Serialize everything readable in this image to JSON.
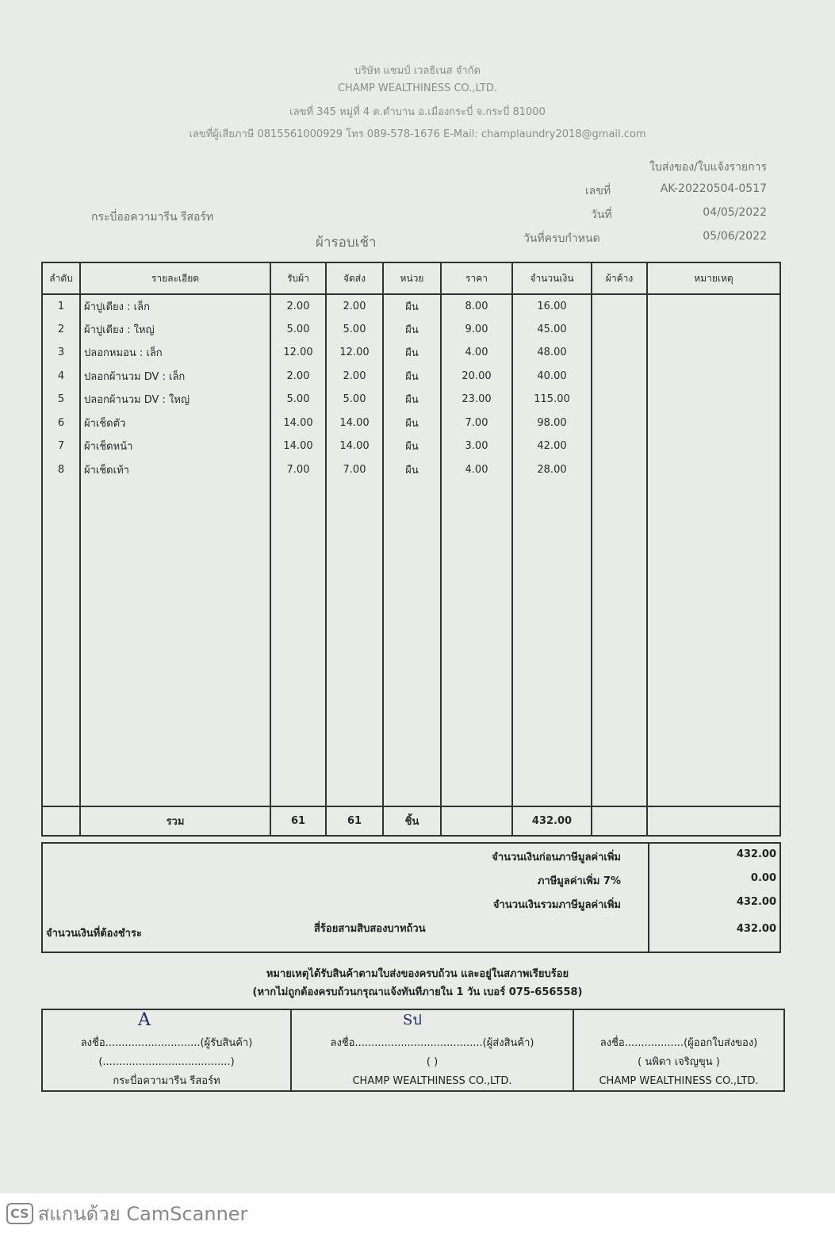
{
  "company": {
    "name_th": "บริษัท แชมป์ เวลธิเนส จำกัด",
    "name_en": "CHAMP WEALTHINESS CO.,LTD.",
    "address": "เลขที่ 345 หมู่ที่ 4 ต.ตำบาน อ.เมืองกระบี่ จ.กระบี่ 81000",
    "contact": "เลขที่ผู้เสียภาษี 0815561000929 โทร 089-578-1676 E-Mail: champlaundry2018@gmail.com"
  },
  "doc": {
    "type": "ใบส่งของ/ใบแจ้งรายการ",
    "no_label": "เลขที่",
    "no": "AK-20220504-0517",
    "date_label": "วันที่",
    "date": "04/05/2022",
    "due_label": "วันที่ครบกำหนด",
    "due": "05/06/2022",
    "customer": "กระบี่ออความารีน รีสอร์ท",
    "round": "ผ้ารอบเช้า"
  },
  "table": {
    "headers": [
      "ลำดับ",
      "รายละเอียด",
      "รับผ้า",
      "จัดส่ง",
      "หน่วย",
      "ราคา",
      "จำนวนเงิน",
      "ผ้าค้าง",
      "หมายเหตุ"
    ],
    "rows": [
      [
        "1",
        "ผ้าปูเตียง : เล็ก",
        "2.00",
        "2.00",
        "ผืน",
        "8.00",
        "16.00"
      ],
      [
        "2",
        "ผ้าปูเตียง : ใหญ่",
        "5.00",
        "5.00",
        "ผืน",
        "9.00",
        "45.00"
      ],
      [
        "3",
        "ปลอกหมอน : เล็ก",
        "12.00",
        "12.00",
        "ผืน",
        "4.00",
        "48.00"
      ],
      [
        "4",
        "ปลอกผ้านวม DV : เล็ก",
        "2.00",
        "2.00",
        "ผืน",
        "20.00",
        "40.00"
      ],
      [
        "5",
        "ปลอกผ้านวม DV : ใหญ่",
        "5.00",
        "5.00",
        "ผืน",
        "23.00",
        "115.00"
      ],
      [
        "6",
        "ผ้าเช็ดตัว",
        "14.00",
        "14.00",
        "ผืน",
        "7.00",
        "98.00"
      ],
      [
        "7",
        "ผ้าเช็ดหน้า",
        "14.00",
        "14.00",
        "ผืน",
        "3.00",
        "42.00"
      ],
      [
        "8",
        "ผ้าเช็ดเท้า",
        "7.00",
        "7.00",
        "ผืน",
        "4.00",
        "28.00"
      ]
    ],
    "total": {
      "label": "รวม",
      "received": "61",
      "delivered": "61",
      "unit": "ชิ้น",
      "amount": "432.00"
    }
  },
  "summary": {
    "pre_vat_label": "จำนวนเงินก่อนภาษีมูลค่าเพิ่ม",
    "pre_vat": "432.00",
    "vat_label": "ภาษีมูลค่าเพิ่ม 7%",
    "vat": "0.00",
    "incl_label": "จำนวนเงินรวมภาษีมูลค่าเพิ่ม",
    "incl": "432.00",
    "due_label": "จำนวนเงินที่ต้องชำระ",
    "words": "สี่ร้อยสามสิบสองบาทถ้วน",
    "due": "432.00"
  },
  "note": {
    "line1": "หมายเหตุได้รับสินค้าตามใบส่งของครบถ้วน และอยู่ในสภาพเรียบร้อย",
    "line2": "(หากไม่ถูกต้องครบถ้วนกรุณาแจ้งทันทีภายใน 1 วัน   เบอร์ 075-656558)"
  },
  "signatures": [
    {
      "line": "ลงชื่อ.............................(ผู้รับสินค้า)",
      "name": "(.......................................)",
      "org": "กระบี่อความารีน รีสอร์ท",
      "mark": "A"
    },
    {
      "line": "ลงชื่อ.......................................(ผู้ส่งสินค้า)",
      "name": "(                    )",
      "org": "CHAMP WEALTHINESS CO.,LTD.",
      "mark": "Sป"
    },
    {
      "line": "ลงชื่อ..................(ผู้ออกใบส่งของ)",
      "name": "(     นพิดา เจริญขุน     )",
      "org": "CHAMP WEALTHINESS CO.,LTD."
    }
  ],
  "watermark": {
    "logo": "CS",
    "text": "สแกนด้วย CamScanner"
  }
}
